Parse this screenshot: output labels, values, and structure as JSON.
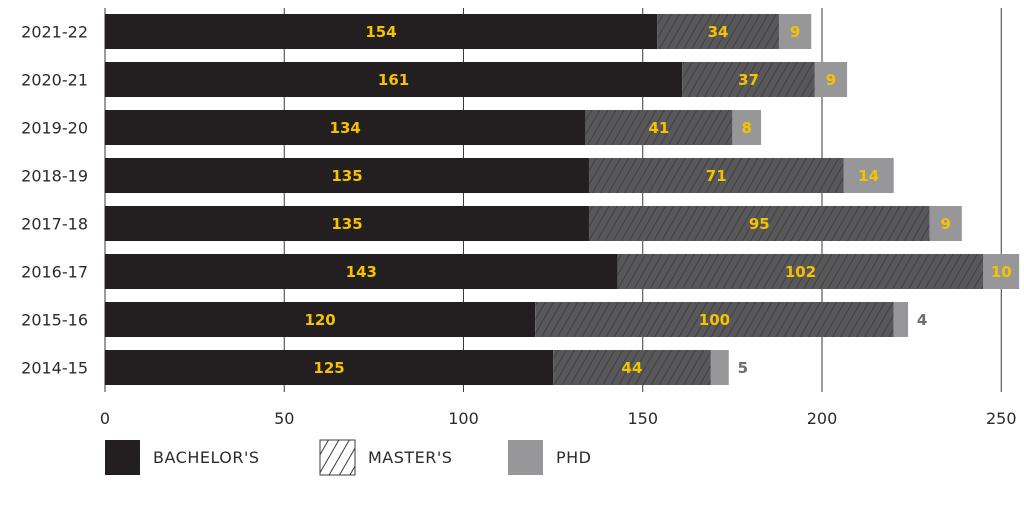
{
  "chart_data": {
    "type": "bar",
    "orientation": "horizontal",
    "stacked": true,
    "categories": [
      "2021-22",
      "2020-21",
      "2019-20",
      "2018-19",
      "2017-18",
      "2016-17",
      "2015-16",
      "2014-15"
    ],
    "series": [
      {
        "name": "BACHELOR'S",
        "values": [
          154,
          161,
          134,
          135,
          135,
          143,
          120,
          125
        ],
        "color": "#231f20",
        "pattern": "solid"
      },
      {
        "name": "MASTER'S",
        "values": [
          34,
          37,
          41,
          71,
          95,
          102,
          100,
          44
        ],
        "color": "#58585a",
        "pattern": "hatched"
      },
      {
        "name": "PHD",
        "values": [
          9,
          9,
          8,
          14,
          9,
          10,
          4,
          5
        ],
        "color": "#97979a",
        "pattern": "solid"
      }
    ],
    "xticks": [
      "0",
      "50",
      "100",
      "150",
      "200",
      "250"
    ],
    "xlim": [
      0,
      255
    ],
    "grid": "vertical",
    "legend_position": "bottom",
    "label_color_inside": "#f5c200",
    "label_color_outside": "#6d6e71"
  }
}
